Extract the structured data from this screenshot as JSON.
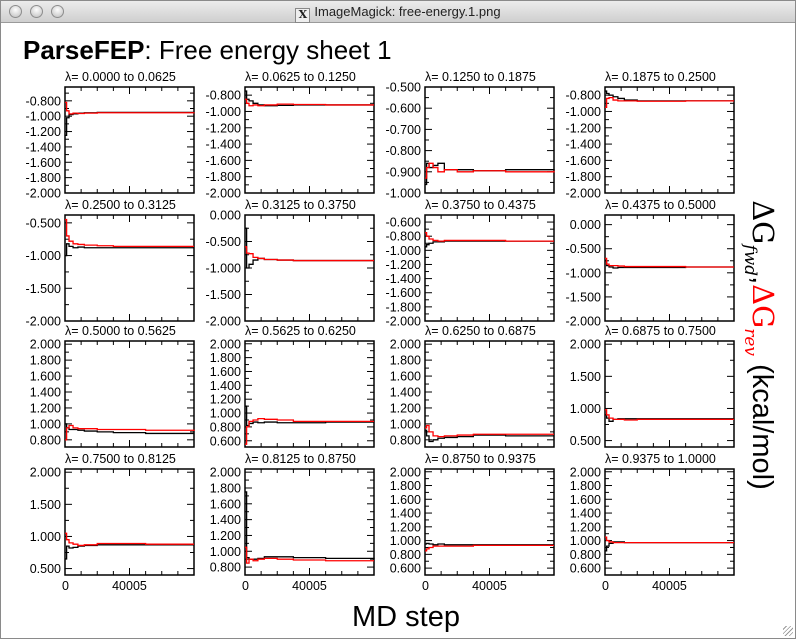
{
  "window": {
    "title": "ImageMagick: free-energy.1.png",
    "x_icon": "X"
  },
  "page": {
    "title_bold": "ParseFEP",
    "title_rest": ": Free energy sheet 1"
  },
  "chart_data": {
    "type": "line",
    "xlabel": "MD step",
    "ylabel": {
      "part1": "ΔG",
      "sub1": "fwd",
      "sep": ",",
      "part2": "ΔG",
      "sub2": "rev",
      "units": " (kcal/mol)"
    },
    "colors": {
      "fwd": "#000000",
      "rev": "#ff0000"
    },
    "xlim": [
      0,
      80010
    ],
    "xticks": [
      0,
      40005
    ],
    "xtick_labels": [
      "0",
      "40005"
    ],
    "x": [
      0,
      1000,
      2500,
      5000,
      8000,
      12000,
      20000,
      30000,
      50000,
      80010
    ],
    "panels": [
      {
        "title": "λ= 0.0000 to   0.0625",
        "ylim": [
          -2.0,
          -0.62
        ],
        "yticks": [
          "-0.800",
          "-1.000",
          "-1.200",
          "-1.400",
          "-1.600",
          "-1.800",
          "-2.000"
        ],
        "fwd": [
          -1.25,
          -1.02,
          -0.98,
          -0.97,
          -0.96,
          -0.955,
          -0.95,
          -0.95,
          -0.95,
          -0.95
        ],
        "rev": [
          -0.82,
          -0.93,
          -0.97,
          -0.96,
          -0.965,
          -0.96,
          -0.955,
          -0.955,
          -0.955,
          -0.95
        ]
      },
      {
        "title": "λ= 0.0625 to   0.1250",
        "ylim": [
          -2.0,
          -0.7
        ],
        "yticks": [
          "-0.800",
          "-1.000",
          "-1.200",
          "-1.400",
          "-1.600",
          "-1.800",
          "-2.000"
        ],
        "fwd": [
          -0.75,
          -0.85,
          -0.87,
          -0.9,
          -0.92,
          -0.93,
          -0.925,
          -0.92,
          -0.92,
          -0.92
        ],
        "rev": [
          -0.85,
          -0.9,
          -0.93,
          -0.92,
          -0.93,
          -0.92,
          -0.91,
          -0.915,
          -0.92,
          -0.92
        ]
      },
      {
        "title": "λ= 0.1250 to   0.1875",
        "ylim": [
          -1.0,
          -0.5
        ],
        "yticks": [
          "-0.500",
          "-0.600",
          "-0.700",
          "-0.800",
          "-0.900",
          "-1.000"
        ],
        "fwd": [
          -0.96,
          -0.86,
          -0.88,
          -0.87,
          -0.86,
          -0.89,
          -0.89,
          -0.895,
          -0.89,
          -0.895
        ],
        "rev": [
          -0.93,
          -0.88,
          -0.86,
          -0.88,
          -0.9,
          -0.89,
          -0.9,
          -0.895,
          -0.9,
          -0.895
        ]
      },
      {
        "title": "λ= 0.1875 to   0.2500",
        "ylim": [
          -2.0,
          -0.7
        ],
        "yticks": [
          "-0.800",
          "-1.000",
          "-1.200",
          "-1.400",
          "-1.600",
          "-1.800",
          "-2.000"
        ],
        "fwd": [
          -0.75,
          -0.78,
          -0.8,
          -0.82,
          -0.84,
          -0.86,
          -0.87,
          -0.87,
          -0.87,
          -0.87
        ],
        "rev": [
          -0.95,
          -0.84,
          -0.83,
          -0.86,
          -0.87,
          -0.87,
          -0.875,
          -0.875,
          -0.87,
          -0.87
        ]
      },
      {
        "title": "λ= 0.2500 to   0.3125",
        "ylim": [
          -2.0,
          -0.38
        ],
        "yticks": [
          "-0.500",
          "-1.000",
          "-1.500",
          "-2.000"
        ],
        "fwd": [
          -1.0,
          -0.82,
          -0.86,
          -0.88,
          -0.87,
          -0.88,
          -0.88,
          -0.88,
          -0.88,
          -0.88
        ],
        "rev": [
          -0.45,
          -0.7,
          -0.78,
          -0.82,
          -0.83,
          -0.84,
          -0.85,
          -0.86,
          -0.86,
          -0.86
        ]
      },
      {
        "title": "λ= 0.3125 to   0.3750",
        "ylim": [
          -2.0,
          0.0
        ],
        "yticks": [
          "0.000",
          "-0.500",
          "-1.000",
          "-1.500",
          "-2.000"
        ],
        "fwd": [
          -0.25,
          -1.0,
          -0.93,
          -0.85,
          -0.82,
          -0.84,
          -0.85,
          -0.86,
          -0.86,
          -0.86
        ],
        "rev": [
          -0.6,
          -0.72,
          -0.73,
          -0.8,
          -0.82,
          -0.84,
          -0.85,
          -0.86,
          -0.86,
          -0.86
        ]
      },
      {
        "title": "λ= 0.3750 to   0.4375",
        "ylim": [
          -2.0,
          -0.5
        ],
        "yticks": [
          "-0.600",
          "-0.800",
          "-1.000",
          "-1.200",
          "-1.400",
          "-1.600",
          "-1.800",
          "-2.000"
        ],
        "fwd": [
          -0.95,
          -0.92,
          -0.9,
          -0.88,
          -0.88,
          -0.87,
          -0.87,
          -0.87,
          -0.87,
          -0.87
        ],
        "rev": [
          -0.75,
          -0.8,
          -0.84,
          -0.86,
          -0.87,
          -0.86,
          -0.86,
          -0.86,
          -0.87,
          -0.87
        ]
      },
      {
        "title": "λ= 0.4375 to   0.5000",
        "ylim": [
          -2.0,
          0.2
        ],
        "yticks": [
          "0.000",
          "-0.500",
          "-1.000",
          "-1.500",
          "-2.000"
        ],
        "fwd": [
          -0.75,
          -0.85,
          -0.88,
          -0.9,
          -0.89,
          -0.89,
          -0.89,
          -0.89,
          -0.88,
          -0.88
        ],
        "rev": [
          -0.7,
          -0.82,
          -0.85,
          -0.85,
          -0.86,
          -0.87,
          -0.87,
          -0.87,
          -0.88,
          -0.88
        ]
      },
      {
        "title": "λ= 0.5000 to   0.5625",
        "ylim": [
          0.71,
          2.04
        ],
        "yticks": [
          "2.000",
          "1.800",
          "1.600",
          "1.400",
          "1.200",
          "1.000",
          "0.800"
        ],
        "fwd": [
          1.0,
          0.95,
          0.93,
          0.93,
          0.92,
          0.91,
          0.9,
          0.89,
          0.88,
          0.88
        ],
        "rev": [
          0.8,
          0.95,
          0.98,
          0.95,
          0.94,
          0.94,
          0.93,
          0.93,
          0.92,
          0.91
        ]
      },
      {
        "title": "λ= 0.5625 to   0.6250",
        "ylim": [
          0.51,
          2.04
        ],
        "yticks": [
          "2.000",
          "1.800",
          "1.600",
          "1.400",
          "1.200",
          "1.000",
          "0.800",
          "0.600"
        ],
        "fwd": [
          1.1,
          0.82,
          0.85,
          0.87,
          0.86,
          0.87,
          0.86,
          0.86,
          0.87,
          0.87
        ],
        "rev": [
          0.55,
          0.8,
          0.88,
          0.9,
          0.92,
          0.91,
          0.9,
          0.88,
          0.88,
          0.88
        ]
      },
      {
        "title": "λ= 0.6250 to   0.6875",
        "ylim": [
          0.71,
          2.04
        ],
        "yticks": [
          "2.000",
          "1.800",
          "1.600",
          "1.400",
          "1.200",
          "1.000",
          "0.800"
        ],
        "fwd": [
          0.92,
          0.85,
          0.78,
          0.8,
          0.82,
          0.83,
          0.84,
          0.86,
          0.85,
          0.85
        ],
        "rev": [
          0.95,
          0.98,
          0.9,
          0.85,
          0.84,
          0.85,
          0.86,
          0.87,
          0.87,
          0.87
        ]
      },
      {
        "title": "λ= 0.6875 to   0.7500",
        "ylim": [
          0.4,
          2.05
        ],
        "yticks": [
          "2.000",
          "1.500",
          "1.000",
          "0.500"
        ],
        "fwd": [
          0.9,
          0.85,
          0.8,
          0.83,
          0.84,
          0.84,
          0.84,
          0.84,
          0.84,
          0.84
        ],
        "rev": [
          0.98,
          0.9,
          0.85,
          0.83,
          0.83,
          0.82,
          0.83,
          0.83,
          0.83,
          0.83
        ]
      },
      {
        "title": "λ= 0.7500 to   0.8125",
        "ylim": [
          0.4,
          2.05
        ],
        "yticks": [
          "2.000",
          "1.500",
          "1.000",
          "0.500"
        ],
        "fwd": [
          0.65,
          0.85,
          0.82,
          0.83,
          0.85,
          0.86,
          0.87,
          0.87,
          0.87,
          0.87
        ],
        "rev": [
          1.05,
          0.95,
          0.9,
          0.88,
          0.86,
          0.87,
          0.89,
          0.89,
          0.88,
          0.88
        ]
      },
      {
        "title": "λ= 0.8125 to   0.8750",
        "ylim": [
          0.7,
          2.04
        ],
        "yticks": [
          "2.000",
          "1.800",
          "1.600",
          "1.400",
          "1.200",
          "1.000",
          "0.800"
        ],
        "fwd": [
          1.75,
          0.92,
          0.9,
          0.9,
          0.91,
          0.93,
          0.93,
          0.92,
          0.91,
          0.9
        ],
        "rev": [
          1.05,
          0.85,
          0.9,
          0.88,
          0.9,
          0.91,
          0.9,
          0.89,
          0.88,
          0.88
        ]
      },
      {
        "title": "λ= 0.8750 to   0.9375",
        "ylim": [
          0.5,
          2.04
        ],
        "yticks": [
          "2.000",
          "1.800",
          "1.600",
          "1.400",
          "1.200",
          "1.000",
          "0.800",
          "0.600"
        ],
        "fwd": [
          0.95,
          0.96,
          0.95,
          0.94,
          0.95,
          0.94,
          0.94,
          0.94,
          0.94,
          0.94
        ],
        "rev": [
          0.85,
          0.88,
          0.9,
          0.92,
          0.92,
          0.92,
          0.92,
          0.93,
          0.93,
          0.93
        ]
      },
      {
        "title": "λ= 0.9375 to   1.0000",
        "ylim": [
          0.5,
          2.04
        ],
        "yticks": [
          "2.000",
          "1.800",
          "1.600",
          "1.400",
          "1.200",
          "1.000",
          "0.800",
          "0.600"
        ],
        "fwd": [
          0.85,
          0.92,
          0.96,
          0.98,
          0.98,
          0.97,
          0.97,
          0.97,
          0.97,
          0.97
        ],
        "rev": [
          1.05,
          1.0,
          0.98,
          0.97,
          0.97,
          0.97,
          0.97,
          0.97,
          0.97,
          0.97
        ]
      }
    ]
  }
}
